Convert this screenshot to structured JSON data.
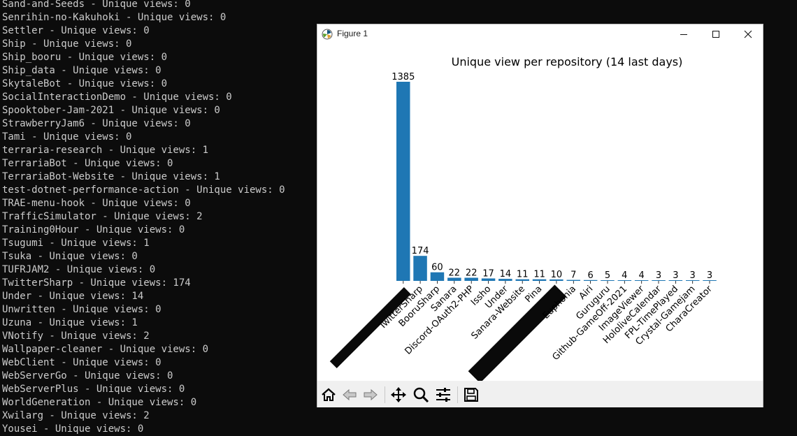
{
  "terminal": {
    "lines": [
      "Sand-and-Seeds - Unique views: 0",
      "Senrihin-no-Kakuhoki - Unique views: 0",
      "Settler - Unique views: 0",
      "Ship - Unique views: 0",
      "Ship_booru - Unique views: 0",
      "Ship_data - Unique views: 0",
      "SkytaleBot - Unique views: 0",
      "SocialInteractionDemo - Unique views: 0",
      "Spooktober-Jam-2021 - Unique views: 0",
      "StrawberryJam6 - Unique views: 0",
      "Tami - Unique views: 0",
      "terraria-research - Unique views: 1",
      "TerrariaBot - Unique views: 0",
      "TerrariaBot-Website - Unique views: 1",
      "test-dotnet-performance-action - Unique views: 0",
      "TRAE-menu-hook - Unique views: 0",
      "TrafficSimulator - Unique views: 2",
      "Training0Hour - Unique views: 0",
      "Tsugumi - Unique views: 1",
      "Tsuka - Unique views: 0",
      "TUFRJAM2 - Unique views: 0",
      "TwitterSharp - Unique views: 174",
      "Under - Unique views: 14",
      "Unwritten - Unique views: 0",
      "Uzuna - Unique views: 1",
      "VNotify - Unique views: 2",
      "Wallpaper-cleaner - Unique views: 0",
      "WebClient - Unique views: 0",
      "WebServerGo - Unique views: 0",
      "WebServerPlus - Unique views: 0",
      "WorldGeneration - Unique views: 0",
      "Xwilarg - Unique views: 2",
      "Yousei - Unique views: 0"
    ]
  },
  "window": {
    "title": "Figure 1",
    "controls": {
      "minimize": "minimize",
      "maximize": "maximize",
      "close": "close"
    }
  },
  "toolbar": {
    "buttons": [
      "home-icon",
      "back-arrow-icon",
      "forward-arrow-icon",
      "pan-icon",
      "zoom-icon",
      "configure-subplots-icon",
      "save-icon"
    ]
  },
  "chart_data": {
    "type": "bar",
    "title": "Unique view per repository (14 last days)",
    "xlabel": "",
    "ylabel": "",
    "bar_color": "#1f77b4",
    "categories": [
      "",
      "TwitterSharp",
      "BooruSharp",
      "Sanara",
      "Discord-OAuth2-PHP",
      "Issho",
      "Under",
      "Sanara-Website",
      "Pina",
      "",
      "Euphonia",
      "Airi",
      "Guruguru",
      "Github-GameOff-2021",
      "ImageViewer",
      "HololiveCalendar",
      "FPL-TimePlayed",
      "Crystal-Gamejam",
      "CharaCreator"
    ],
    "values": [
      1385,
      174,
      60,
      22,
      22,
      17,
      14,
      11,
      11,
      10,
      7,
      6,
      5,
      4,
      4,
      3,
      3,
      3,
      3
    ],
    "ylim": [
      0,
      1385
    ],
    "grid": false,
    "redacted_labels": [
      0,
      9
    ]
  }
}
